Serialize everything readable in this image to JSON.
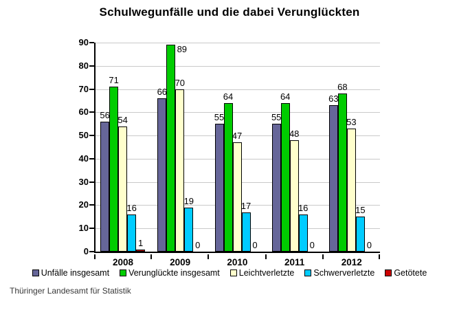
{
  "title": "Schulwegunfälle und die dabei Verunglückten",
  "footer": "Thüringer Landesamt für Statistik",
  "chart_data": {
    "type": "bar",
    "title": "Schulwegunfälle und die dabei Verunglückten",
    "categories": [
      "2008",
      "2009",
      "2010",
      "2011",
      "2012"
    ],
    "series": [
      {
        "name": "Unfälle insgesamt",
        "color": "#666699",
        "values": [
          56,
          66,
          55,
          55,
          63
        ]
      },
      {
        "name": "Verunglückte insgesamt",
        "color": "#00CC00",
        "values": [
          71,
          89,
          64,
          64,
          68
        ]
      },
      {
        "name": "Leichtverletzte",
        "color": "#FFFFCC",
        "values": [
          54,
          70,
          47,
          48,
          53
        ]
      },
      {
        "name": "Schwerverletzte",
        "color": "#00CCFF",
        "values": [
          16,
          19,
          17,
          16,
          15
        ]
      },
      {
        "name": "Getötete",
        "color": "#CC0000",
        "values": [
          1,
          0,
          0,
          0,
          0
        ]
      }
    ],
    "ylim": [
      0,
      90
    ],
    "yticks": [
      0,
      10,
      20,
      30,
      40,
      50,
      60,
      70,
      80,
      90
    ],
    "grid": true,
    "gridline_color": "#c9c9c9",
    "bar_outline_color": "#000000",
    "legend_position": "bottom",
    "data_labels": true,
    "xlabel": "",
    "ylabel": ""
  }
}
